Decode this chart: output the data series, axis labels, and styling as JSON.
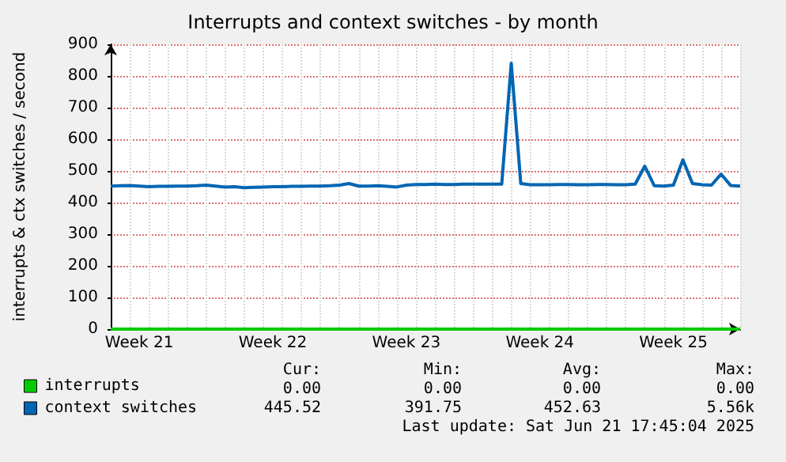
{
  "chart_data": {
    "type": "line",
    "title": "Interrupts and context switches - by month",
    "ylabel": "interrupts & ctx switches / second",
    "categories": [
      null,
      null,
      null,
      "Week 21",
      null,
      null,
      null,
      null,
      null,
      null,
      null,
      null,
      null,
      null,
      null,
      null,
      null,
      "Week 22",
      null,
      null,
      null,
      null,
      null,
      null,
      null,
      null,
      null,
      null,
      null,
      null,
      null,
      "Week 23",
      null,
      null,
      null,
      null,
      null,
      null,
      null,
      null,
      null,
      null,
      null,
      null,
      null,
      "Week 24",
      null,
      null,
      null,
      null,
      null,
      null,
      null,
      null,
      null,
      null,
      null,
      null,
      null,
      "Week 25",
      null,
      null,
      null,
      null,
      null,
      null,
      null
    ],
    "ylim": [
      0,
      900
    ],
    "yticks": [
      0,
      100,
      200,
      300,
      400,
      500,
      600,
      700,
      800,
      900
    ],
    "grid": true,
    "legend": "bottom left",
    "marker": "none",
    "line_style": "solid",
    "series": [
      {
        "name": "interrupts",
        "color": "#00cc00",
        "values": [
          0,
          0,
          0,
          0,
          0,
          0,
          0,
          0,
          0,
          0,
          0,
          0,
          0,
          0,
          0,
          0,
          0,
          0,
          0,
          0,
          0,
          0,
          0,
          0,
          0,
          0,
          0,
          0,
          0,
          0,
          0,
          0,
          0,
          0,
          0,
          0,
          0,
          0,
          0,
          0,
          0,
          0,
          0,
          0,
          0,
          0,
          0,
          0,
          0,
          0,
          0,
          0,
          0,
          0,
          0,
          0,
          0,
          0,
          0,
          0,
          0,
          0,
          0,
          0,
          0,
          0,
          0
        ]
      },
      {
        "name": "context switches",
        "color": "#0066b3",
        "values": [
          452,
          453,
          454,
          452,
          450,
          451,
          451,
          452,
          452,
          453,
          455,
          452,
          449,
          450,
          447,
          448,
          449,
          450,
          450,
          451,
          451,
          452,
          452,
          453,
          455,
          460,
          452,
          452,
          453,
          451,
          449,
          455,
          457,
          457,
          458,
          457,
          457,
          458,
          458,
          458,
          458,
          458,
          840,
          460,
          456,
          456,
          456,
          457,
          457,
          456,
          456,
          457,
          457,
          456,
          456,
          458,
          515,
          453,
          452,
          455,
          535,
          460,
          456,
          455,
          490,
          454,
          452
        ]
      }
    ],
    "annotations": [
      "Cur:",
      "Min:",
      "Avg:",
      "Max:",
      "0.00",
      "0.00",
      "0.00",
      "0.00",
      "445.52",
      "391.75",
      "452.63",
      "5.56k",
      "Last update: Sat Jun 21 17:45:04 2025"
    ]
  }
}
